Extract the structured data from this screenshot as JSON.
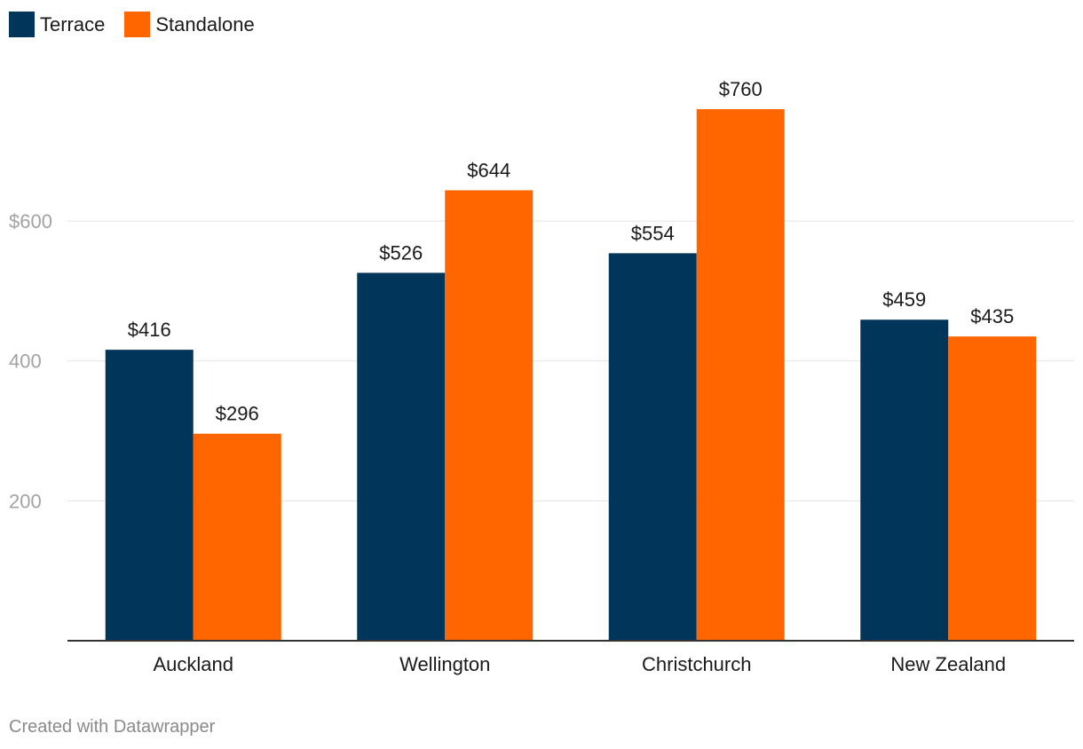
{
  "legend": [
    {
      "name": "Terrace",
      "color": "#02355a"
    },
    {
      "name": "Standalone",
      "color": "#ff6600"
    }
  ],
  "footer": "Created with Datawrapper",
  "chart_data": {
    "type": "bar",
    "title": "",
    "xlabel": "",
    "ylabel": "",
    "categories": [
      "Auckland",
      "Wellington",
      "Christchurch",
      "New Zealand"
    ],
    "series": [
      {
        "name": "Terrace",
        "color": "#02355a",
        "values": [
          416,
          526,
          554,
          459
        ],
        "labels": [
          "$416",
          "$526",
          "$554",
          "$459"
        ]
      },
      {
        "name": "Standalone",
        "color": "#ff6600",
        "values": [
          296,
          644,
          760,
          435
        ],
        "labels": [
          "$296",
          "$644",
          "$760",
          "$435"
        ]
      }
    ],
    "yticks": [
      200,
      400,
      600
    ],
    "ytick_labels": [
      "200",
      "400",
      "$600"
    ],
    "ylim": [
      0,
      760
    ],
    "grid": true,
    "legend_position": "top-left"
  }
}
